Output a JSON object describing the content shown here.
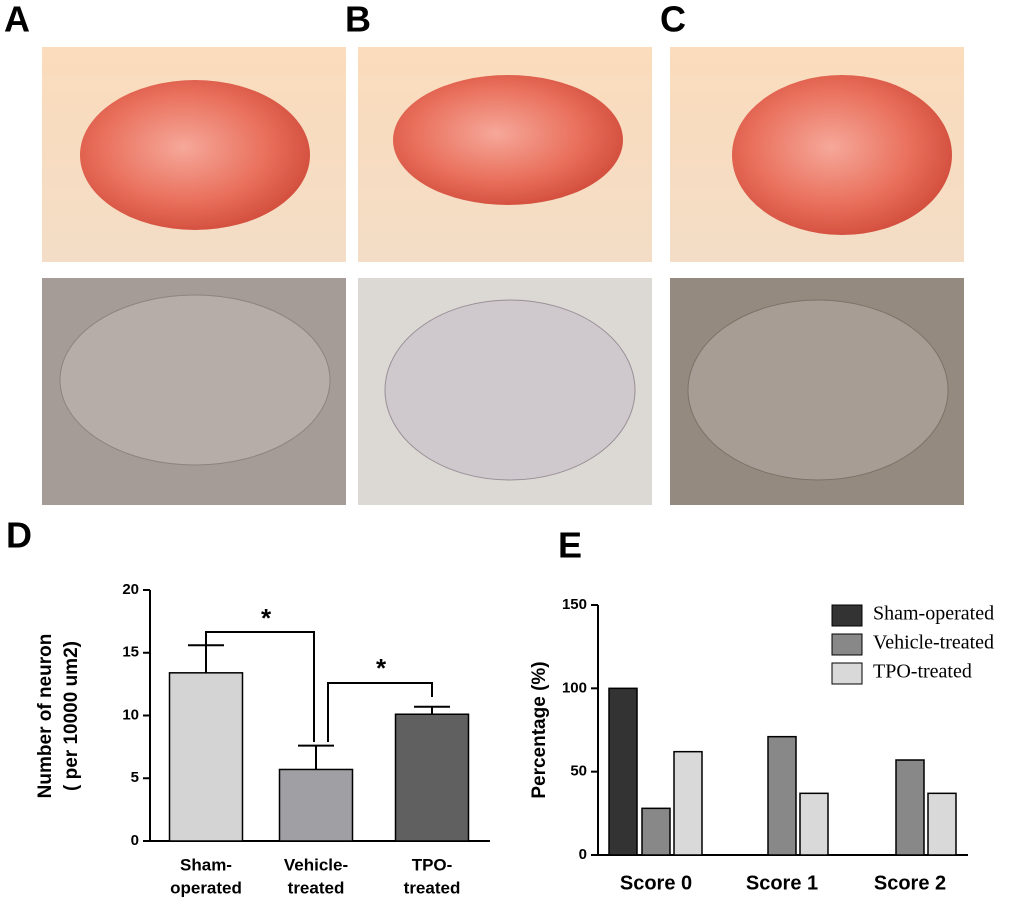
{
  "panel_labels": [
    "A",
    "B",
    "C",
    "D",
    "E"
  ],
  "chart_data": [
    {
      "type": "bar",
      "y_label": [
        "Number of neuron",
        "( per 10000 um2)"
      ],
      "categories": [
        [
          "Sham-",
          "operated"
        ],
        [
          "Vehicle-",
          "treated"
        ],
        [
          "TPO-",
          "treated"
        ]
      ],
      "values": [
        13.4,
        5.7,
        10.1
      ],
      "errors": [
        2.2,
        1.9,
        0.6
      ],
      "colors": [
        "#d4d4d4",
        "#a0a0a4",
        "#606060"
      ],
      "annotations": [
        "*",
        "*"
      ],
      "ylim": [
        0,
        20
      ],
      "yticks": [
        0,
        5,
        10,
        15,
        20
      ]
    },
    {
      "type": "grouped_bar",
      "y_label": "Percentage (%)",
      "categories": [
        "Score 0",
        "Score 1",
        "Score 2"
      ],
      "series": [
        {
          "name": "Sham-operated",
          "color": "#333333",
          "values": [
            100,
            0,
            0
          ]
        },
        {
          "name": "Vehicle-treated",
          "color": "#888888",
          "values": [
            28,
            71,
            57
          ]
        },
        {
          "name": "TPO-treated",
          "color": "#d9d9d9",
          "values": [
            62,
            37,
            37
          ]
        }
      ],
      "ylim": [
        0,
        150
      ],
      "yticks": [
        0,
        50,
        100,
        150
      ],
      "legend": "top-right"
    }
  ]
}
